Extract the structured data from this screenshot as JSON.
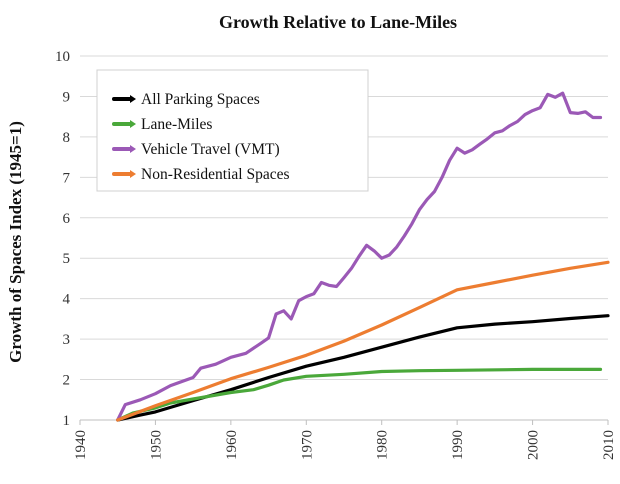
{
  "chart_data": {
    "type": "line",
    "title": "Growth Relative to Lane-Miles",
    "xlabel": "",
    "ylabel": "Growth of Spaces Index (1945=1)",
    "xlim": [
      1940,
      2010
    ],
    "ylim": [
      1,
      10
    ],
    "x_ticks": [
      1940,
      1950,
      1960,
      1970,
      1980,
      1990,
      2000,
      2010
    ],
    "y_ticks": [
      1,
      2,
      3,
      4,
      5,
      6,
      7,
      8,
      9,
      10
    ],
    "grid": "horizontal",
    "legend_position": "top-left",
    "series": [
      {
        "name": "All Parking Spaces",
        "color": "#000000",
        "points": [
          [
            1945,
            1.0
          ],
          [
            1948,
            1.12
          ],
          [
            1950,
            1.2
          ],
          [
            1955,
            1.48
          ],
          [
            1960,
            1.75
          ],
          [
            1965,
            2.05
          ],
          [
            1970,
            2.33
          ],
          [
            1975,
            2.55
          ],
          [
            1980,
            2.8
          ],
          [
            1985,
            3.05
          ],
          [
            1990,
            3.28
          ],
          [
            1995,
            3.37
          ],
          [
            2000,
            3.43
          ],
          [
            2005,
            3.51
          ],
          [
            2010,
            3.58
          ]
        ]
      },
      {
        "name": "Lane-Miles",
        "color": "#4aa83a",
        "points": [
          [
            1945,
            1.0
          ],
          [
            1947,
            1.17
          ],
          [
            1950,
            1.3
          ],
          [
            1952,
            1.42
          ],
          [
            1955,
            1.52
          ],
          [
            1960,
            1.68
          ],
          [
            1963,
            1.75
          ],
          [
            1965,
            1.86
          ],
          [
            1967,
            1.99
          ],
          [
            1970,
            2.08
          ],
          [
            1975,
            2.13
          ],
          [
            1980,
            2.2
          ],
          [
            1985,
            2.22
          ],
          [
            1990,
            2.23
          ],
          [
            2000,
            2.25
          ],
          [
            2009,
            2.25
          ]
        ]
      },
      {
        "name": "Vehicle Travel (VMT)",
        "color": "#9b59b6",
        "points": [
          [
            1945,
            1.0
          ],
          [
            1946,
            1.38
          ],
          [
            1948,
            1.5
          ],
          [
            1950,
            1.65
          ],
          [
            1952,
            1.85
          ],
          [
            1955,
            2.05
          ],
          [
            1956,
            2.28
          ],
          [
            1958,
            2.38
          ],
          [
            1960,
            2.55
          ],
          [
            1962,
            2.65
          ],
          [
            1964,
            2.9
          ],
          [
            1965,
            3.03
          ],
          [
            1966,
            3.62
          ],
          [
            1967,
            3.7
          ],
          [
            1968,
            3.5
          ],
          [
            1969,
            3.95
          ],
          [
            1970,
            4.05
          ],
          [
            1971,
            4.12
          ],
          [
            1972,
            4.4
          ],
          [
            1973,
            4.33
          ],
          [
            1974,
            4.3
          ],
          [
            1975,
            4.52
          ],
          [
            1976,
            4.75
          ],
          [
            1977,
            5.05
          ],
          [
            1978,
            5.32
          ],
          [
            1979,
            5.18
          ],
          [
            1980,
            5.0
          ],
          [
            1981,
            5.08
          ],
          [
            1982,
            5.28
          ],
          [
            1983,
            5.55
          ],
          [
            1984,
            5.85
          ],
          [
            1985,
            6.2
          ],
          [
            1986,
            6.45
          ],
          [
            1987,
            6.65
          ],
          [
            1988,
            7.0
          ],
          [
            1989,
            7.42
          ],
          [
            1990,
            7.72
          ],
          [
            1991,
            7.6
          ],
          [
            1992,
            7.68
          ],
          [
            1993,
            7.82
          ],
          [
            1994,
            7.95
          ],
          [
            1995,
            8.1
          ],
          [
            1996,
            8.15
          ],
          [
            1997,
            8.28
          ],
          [
            1998,
            8.38
          ],
          [
            1999,
            8.55
          ],
          [
            2000,
            8.65
          ],
          [
            2001,
            8.72
          ],
          [
            2002,
            9.05
          ],
          [
            2003,
            8.98
          ],
          [
            2004,
            9.08
          ],
          [
            2005,
            8.6
          ],
          [
            2006,
            8.58
          ],
          [
            2007,
            8.62
          ],
          [
            2008,
            8.48
          ],
          [
            2009,
            8.48
          ]
        ]
      },
      {
        "name": "Non-Residential Spaces",
        "color": "#ed7d31",
        "points": [
          [
            1945,
            1.0
          ],
          [
            1950,
            1.35
          ],
          [
            1955,
            1.68
          ],
          [
            1960,
            2.02
          ],
          [
            1965,
            2.3
          ],
          [
            1970,
            2.6
          ],
          [
            1975,
            2.95
          ],
          [
            1980,
            3.35
          ],
          [
            1985,
            3.78
          ],
          [
            1990,
            4.22
          ],
          [
            1995,
            4.4
          ],
          [
            2000,
            4.58
          ],
          [
            2005,
            4.75
          ],
          [
            2010,
            4.9
          ]
        ]
      }
    ]
  }
}
